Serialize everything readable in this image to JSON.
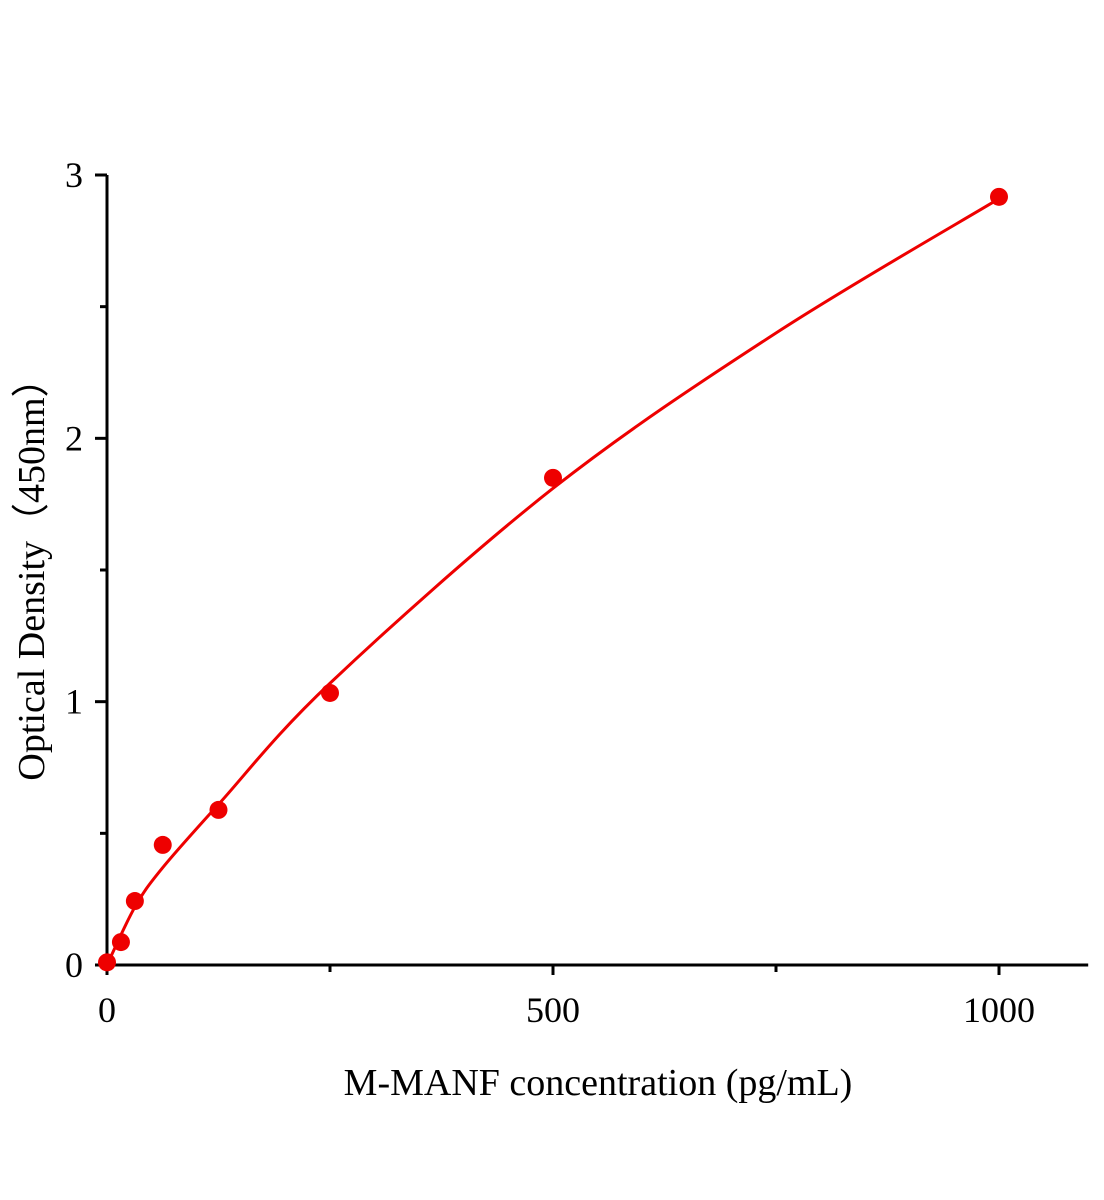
{
  "chart_data": {
    "type": "scatter",
    "title": "",
    "xlabel": "M-MANF concentration (pg/mL)",
    "ylabel": "Optical Density（450nm）",
    "xlim": [
      0,
      1100
    ],
    "ylim": [
      0,
      3
    ],
    "x_ticks": [
      0,
      500,
      1000
    ],
    "x_minor_ticks": [
      250,
      750
    ],
    "y_ticks": [
      0,
      1,
      2,
      3
    ],
    "y_minor_ticks": [
      0.5,
      1.5,
      2.5
    ],
    "grid": false,
    "legend": "none",
    "color": "#ee0000",
    "points": {
      "x": [
        0,
        15.625,
        31.25,
        62.5,
        125,
        250,
        500,
        1000
      ],
      "y": [
        0.01,
        0.087,
        0.243,
        0.456,
        0.589,
        1.033,
        1.85,
        2.917
      ]
    },
    "fit_curve": {
      "x": [
        0,
        31.25,
        62.5,
        125,
        250,
        500,
        750,
        1000
      ],
      "y": [
        0,
        0.22,
        0.37,
        0.61,
        1.07,
        1.81,
        2.4,
        2.91
      ]
    }
  }
}
